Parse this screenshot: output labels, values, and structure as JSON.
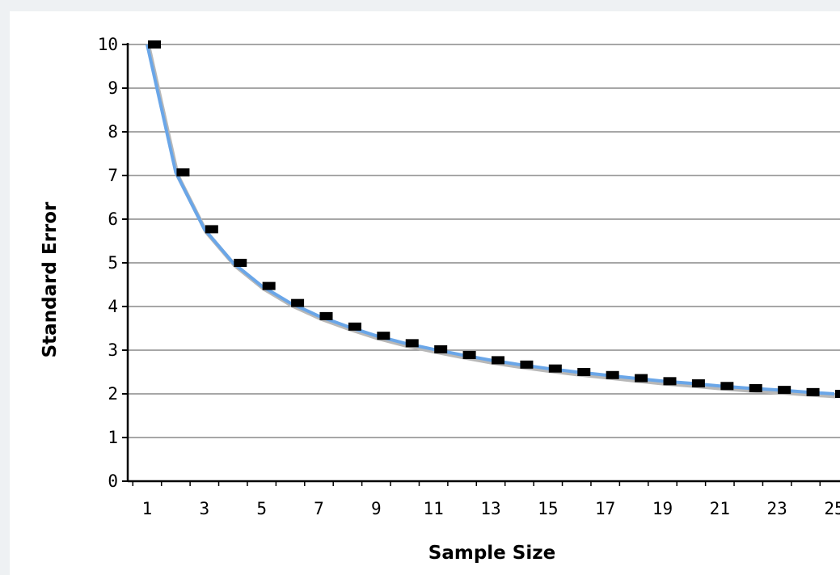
{
  "chart_data": {
    "type": "line",
    "title": "",
    "xlabel": "Sample Size",
    "ylabel": "Standard Error",
    "xlim": [
      1,
      25
    ],
    "ylim": [
      0,
      10
    ],
    "x_ticks": [
      1,
      3,
      5,
      7,
      9,
      11,
      13,
      15,
      17,
      19,
      21,
      23,
      25
    ],
    "y_ticks": [
      0,
      1,
      2,
      3,
      4,
      5,
      6,
      7,
      8,
      9,
      10
    ],
    "grid": true,
    "legend": "none",
    "x": [
      1,
      2,
      3,
      4,
      5,
      6,
      7,
      8,
      9,
      10,
      11,
      12,
      13,
      14,
      15,
      16,
      17,
      18,
      19,
      20,
      21,
      22,
      23,
      24,
      25
    ],
    "series": [
      {
        "style": "line",
        "color": "#6aa6e8",
        "values": [
          10.0,
          7.07,
          5.77,
          5.0,
          4.47,
          4.08,
          3.78,
          3.54,
          3.33,
          3.16,
          3.02,
          2.89,
          2.77,
          2.67,
          2.58,
          2.5,
          2.43,
          2.36,
          2.29,
          2.24,
          2.18,
          2.13,
          2.09,
          2.04,
          2.0
        ]
      },
      {
        "style": "markers",
        "color": "#000000",
        "values": [
          10.0,
          7.07,
          5.77,
          5.0,
          4.47,
          4.08,
          3.78,
          3.54,
          3.33,
          3.16,
          3.02,
          2.89,
          2.77,
          2.67,
          2.58,
          2.5,
          2.43,
          2.36,
          2.29,
          2.24,
          2.18,
          2.13,
          2.09,
          2.04,
          2.0
        ]
      }
    ]
  }
}
